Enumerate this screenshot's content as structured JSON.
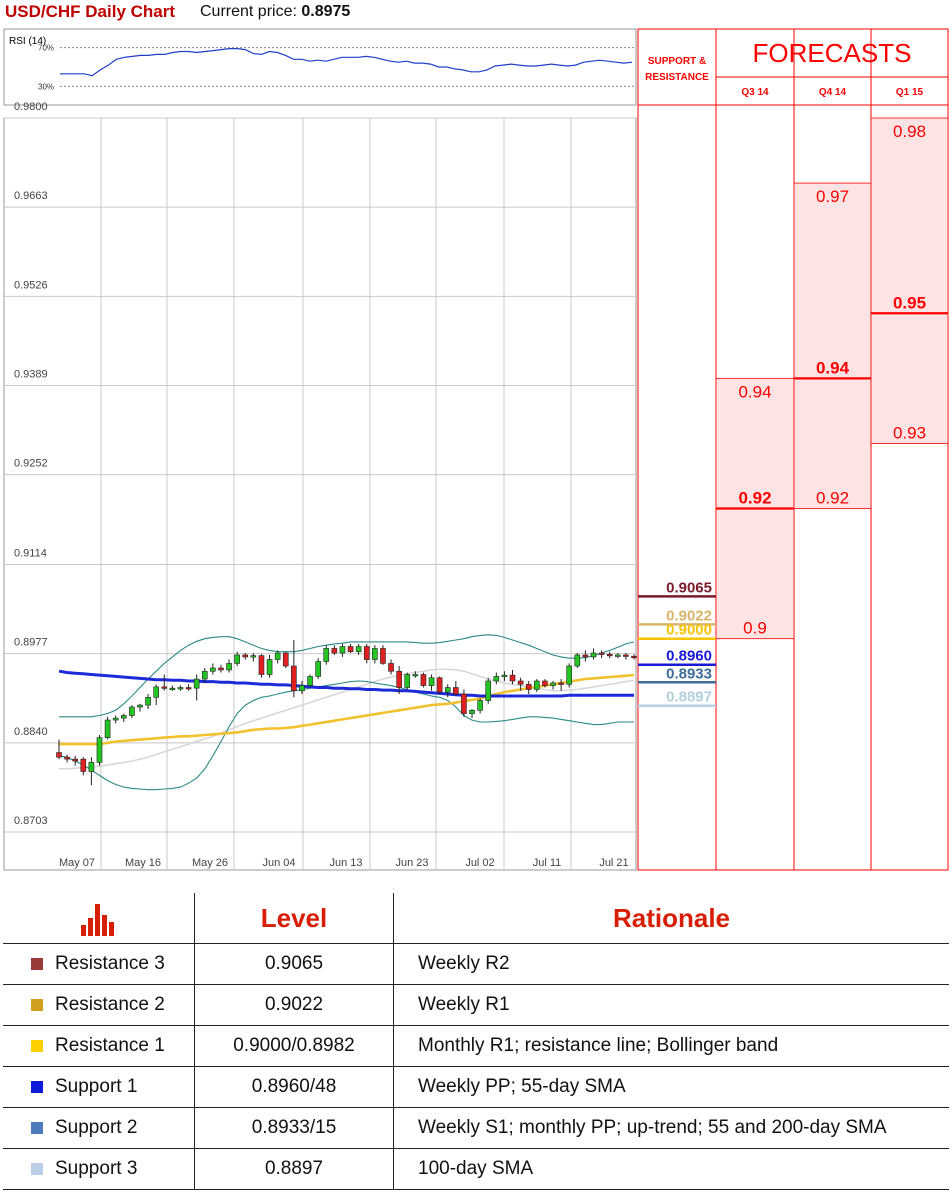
{
  "header": {
    "title": "USD/CHF Daily Chart",
    "price_label": "Current price:",
    "price_value": "0.8975"
  },
  "panel": {
    "sr_title": "SUPPORT & RESISTANCE",
    "forecasts_title": "FORECASTS",
    "quarters": [
      "Q3 14",
      "Q4 14",
      "Q1 15"
    ],
    "forecast_color": "#ff0000",
    "band_fill": "#fde3e3"
  },
  "chart_data": {
    "type": "candlestick",
    "rsi": {
      "label": "RSI (14)",
      "levels": [
        "70%",
        "30%"
      ],
      "values": [
        43,
        43,
        43,
        43,
        41,
        47,
        52,
        58,
        60,
        61,
        62,
        62,
        63,
        63,
        65,
        66,
        66,
        65,
        66,
        67,
        68,
        69,
        69,
        68,
        64,
        63,
        66,
        65,
        62,
        58,
        58,
        56,
        57,
        56,
        58,
        60,
        60,
        60,
        61,
        60,
        58,
        56,
        55,
        56,
        54,
        54,
        53,
        50,
        50,
        48,
        47,
        45,
        45,
        47,
        51,
        52,
        53,
        52,
        51,
        51,
        52,
        53,
        52,
        51,
        52,
        55,
        56,
        57,
        56,
        55,
        54,
        55
      ]
    },
    "y_ticks": [
      "0.9800",
      "0.9663",
      "0.9526",
      "0.9389",
      "0.9252",
      "0.9114",
      "0.8977",
      "0.8840",
      "0.8703"
    ],
    "y_values": [
      0.98,
      0.9663,
      0.9526,
      0.9389,
      0.9252,
      0.9114,
      0.8977,
      0.884,
      0.8703
    ],
    "ylim": [
      0.8703,
      0.98
    ],
    "x_labels": [
      "May 07",
      "May 16",
      "May 26",
      "Jun 04",
      "Jun 13",
      "Jun 23",
      "Jul 02",
      "Jul 11",
      "Jul 21"
    ],
    "candles": [
      {
        "o": 0.8825,
        "h": 0.8845,
        "l": 0.8815,
        "c": 0.8818
      },
      {
        "o": 0.8818,
        "h": 0.8822,
        "l": 0.881,
        "c": 0.8815
      },
      {
        "o": 0.8815,
        "h": 0.882,
        "l": 0.8805,
        "c": 0.8812
      },
      {
        "o": 0.8815,
        "h": 0.8818,
        "l": 0.879,
        "c": 0.8796
      },
      {
        "o": 0.8796,
        "h": 0.8818,
        "l": 0.8775,
        "c": 0.881
      },
      {
        "o": 0.881,
        "h": 0.8852,
        "l": 0.8805,
        "c": 0.8848
      },
      {
        "o": 0.8848,
        "h": 0.888,
        "l": 0.8845,
        "c": 0.8875
      },
      {
        "o": 0.8875,
        "h": 0.8882,
        "l": 0.887,
        "c": 0.8878
      },
      {
        "o": 0.8878,
        "h": 0.8885,
        "l": 0.8872,
        "c": 0.8882
      },
      {
        "o": 0.8882,
        "h": 0.8898,
        "l": 0.8878,
        "c": 0.8895
      },
      {
        "o": 0.8895,
        "h": 0.89,
        "l": 0.8888,
        "c": 0.8898
      },
      {
        "o": 0.8898,
        "h": 0.8915,
        "l": 0.8892,
        "c": 0.891
      },
      {
        "o": 0.891,
        "h": 0.893,
        "l": 0.8898,
        "c": 0.8926
      },
      {
        "o": 0.8926,
        "h": 0.8945,
        "l": 0.892,
        "c": 0.8924
      },
      {
        "o": 0.8924,
        "h": 0.8928,
        "l": 0.892,
        "c": 0.8924
      },
      {
        "o": 0.8924,
        "h": 0.8928,
        "l": 0.892,
        "c": 0.8925
      },
      {
        "o": 0.8925,
        "h": 0.893,
        "l": 0.892,
        "c": 0.8924
      },
      {
        "o": 0.8924,
        "h": 0.8945,
        "l": 0.8905,
        "c": 0.8938
      },
      {
        "o": 0.8938,
        "h": 0.8955,
        "l": 0.8932,
        "c": 0.895
      },
      {
        "o": 0.895,
        "h": 0.8962,
        "l": 0.8945,
        "c": 0.8955
      },
      {
        "o": 0.8955,
        "h": 0.896,
        "l": 0.8948,
        "c": 0.8952
      },
      {
        "o": 0.8952,
        "h": 0.8968,
        "l": 0.8948,
        "c": 0.8962
      },
      {
        "o": 0.8962,
        "h": 0.898,
        "l": 0.8958,
        "c": 0.8975
      },
      {
        "o": 0.8975,
        "h": 0.8978,
        "l": 0.8968,
        "c": 0.8972
      },
      {
        "o": 0.8972,
        "h": 0.8978,
        "l": 0.8965,
        "c": 0.8974
      },
      {
        "o": 0.8974,
        "h": 0.8976,
        "l": 0.894,
        "c": 0.8945
      },
      {
        "o": 0.8945,
        "h": 0.8975,
        "l": 0.894,
        "c": 0.8968
      },
      {
        "o": 0.8968,
        "h": 0.8982,
        "l": 0.8962,
        "c": 0.8978
      },
      {
        "o": 0.8978,
        "h": 0.898,
        "l": 0.8955,
        "c": 0.8958
      },
      {
        "o": 0.8958,
        "h": 0.8998,
        "l": 0.891,
        "c": 0.892
      },
      {
        "o": 0.892,
        "h": 0.8935,
        "l": 0.8915,
        "c": 0.8928
      },
      {
        "o": 0.8928,
        "h": 0.8945,
        "l": 0.8925,
        "c": 0.8942
      },
      {
        "o": 0.8942,
        "h": 0.897,
        "l": 0.8938,
        "c": 0.8965
      },
      {
        "o": 0.8965,
        "h": 0.899,
        "l": 0.896,
        "c": 0.8985
      },
      {
        "o": 0.8985,
        "h": 0.899,
        "l": 0.8975,
        "c": 0.8978
      },
      {
        "o": 0.8978,
        "h": 0.8992,
        "l": 0.8972,
        "c": 0.8988
      },
      {
        "o": 0.8988,
        "h": 0.8992,
        "l": 0.8978,
        "c": 0.898
      },
      {
        "o": 0.898,
        "h": 0.8992,
        "l": 0.8975,
        "c": 0.8988
      },
      {
        "o": 0.8988,
        "h": 0.8992,
        "l": 0.8962,
        "c": 0.8968
      },
      {
        "o": 0.8968,
        "h": 0.899,
        "l": 0.8962,
        "c": 0.8985
      },
      {
        "o": 0.8985,
        "h": 0.899,
        "l": 0.896,
        "c": 0.8962
      },
      {
        "o": 0.8962,
        "h": 0.8968,
        "l": 0.8945,
        "c": 0.895
      },
      {
        "o": 0.895,
        "h": 0.8958,
        "l": 0.8915,
        "c": 0.8925
      },
      {
        "o": 0.8925,
        "h": 0.8948,
        "l": 0.8922,
        "c": 0.8945
      },
      {
        "o": 0.8945,
        "h": 0.895,
        "l": 0.894,
        "c": 0.8945
      },
      {
        "o": 0.8945,
        "h": 0.8948,
        "l": 0.8925,
        "c": 0.8928
      },
      {
        "o": 0.8928,
        "h": 0.8945,
        "l": 0.892,
        "c": 0.894
      },
      {
        "o": 0.894,
        "h": 0.8942,
        "l": 0.8915,
        "c": 0.8918
      },
      {
        "o": 0.8918,
        "h": 0.893,
        "l": 0.891,
        "c": 0.8925
      },
      {
        "o": 0.8925,
        "h": 0.8935,
        "l": 0.8912,
        "c": 0.8915
      },
      {
        "o": 0.8915,
        "h": 0.8922,
        "l": 0.888,
        "c": 0.8885
      },
      {
        "o": 0.8885,
        "h": 0.8892,
        "l": 0.8878,
        "c": 0.889
      },
      {
        "o": 0.889,
        "h": 0.8908,
        "l": 0.8885,
        "c": 0.8905
      },
      {
        "o": 0.8905,
        "h": 0.894,
        "l": 0.89,
        "c": 0.8935
      },
      {
        "o": 0.8935,
        "h": 0.8948,
        "l": 0.893,
        "c": 0.8942
      },
      {
        "o": 0.8942,
        "h": 0.895,
        "l": 0.8935,
        "c": 0.8944
      },
      {
        "o": 0.8944,
        "h": 0.8952,
        "l": 0.893,
        "c": 0.8935
      },
      {
        "o": 0.8935,
        "h": 0.894,
        "l": 0.892,
        "c": 0.893
      },
      {
        "o": 0.893,
        "h": 0.8935,
        "l": 0.8915,
        "c": 0.8922
      },
      {
        "o": 0.8922,
        "h": 0.8938,
        "l": 0.8918,
        "c": 0.8935
      },
      {
        "o": 0.8935,
        "h": 0.8938,
        "l": 0.8925,
        "c": 0.8928
      },
      {
        "o": 0.8928,
        "h": 0.8935,
        "l": 0.8922,
        "c": 0.8932
      },
      {
        "o": 0.8932,
        "h": 0.8938,
        "l": 0.892,
        "c": 0.893
      },
      {
        "o": 0.893,
        "h": 0.8962,
        "l": 0.8925,
        "c": 0.8958
      },
      {
        "o": 0.8958,
        "h": 0.8978,
        "l": 0.8955,
        "c": 0.8975
      },
      {
        "o": 0.8975,
        "h": 0.8982,
        "l": 0.8965,
        "c": 0.8972
      },
      {
        "o": 0.8972,
        "h": 0.8985,
        "l": 0.8968,
        "c": 0.8978
      },
      {
        "o": 0.8978,
        "h": 0.8982,
        "l": 0.897,
        "c": 0.8976
      },
      {
        "o": 0.8976,
        "h": 0.898,
        "l": 0.897,
        "c": 0.8974
      },
      {
        "o": 0.8974,
        "h": 0.8978,
        "l": 0.897,
        "c": 0.8975
      },
      {
        "o": 0.8975,
        "h": 0.8978,
        "l": 0.8968,
        "c": 0.8973
      },
      {
        "o": 0.8973,
        "h": 0.8976,
        "l": 0.8968,
        "c": 0.8972
      }
    ],
    "sma_yellow": [
      0.8838,
      0.8838,
      0.8838,
      0.8838,
      0.8838,
      0.8838,
      0.884,
      0.8842,
      0.8843,
      0.8844,
      0.8845,
      0.8846,
      0.8847,
      0.8848,
      0.8849,
      0.885,
      0.885,
      0.8851,
      0.8852,
      0.8853,
      0.8854,
      0.8855,
      0.8856,
      0.8858,
      0.886,
      0.8861,
      0.8862,
      0.8862,
      0.8863,
      0.8864,
      0.8866,
      0.8868,
      0.887,
      0.8872,
      0.8874,
      0.8876,
      0.8878,
      0.888,
      0.8882,
      0.8884,
      0.8886,
      0.8888,
      0.889,
      0.8892,
      0.8894,
      0.8896,
      0.8898,
      0.8899,
      0.89,
      0.8902,
      0.8904,
      0.8906,
      0.8908,
      0.8912,
      0.8915,
      0.8918,
      0.892,
      0.8922,
      0.8924,
      0.8926,
      0.8928,
      0.893,
      0.8932,
      0.8934,
      0.8936,
      0.8938,
      0.8939,
      0.894,
      0.8941,
      0.8942,
      0.8943,
      0.8944
    ],
    "sma_blue": [
      0.895,
      0.8948,
      0.8947,
      0.8946,
      0.8945,
      0.8944,
      0.8943,
      0.8942,
      0.8941,
      0.894,
      0.8939,
      0.8938,
      0.8937,
      0.8937,
      0.8936,
      0.8936,
      0.8935,
      0.8935,
      0.8934,
      0.8934,
      0.8933,
      0.8933,
      0.8932,
      0.8932,
      0.8931,
      0.893,
      0.893,
      0.8929,
      0.8929,
      0.8928,
      0.8927,
      0.8926,
      0.8925,
      0.8925,
      0.8924,
      0.8924,
      0.8923,
      0.8923,
      0.8922,
      0.8922,
      0.8921,
      0.8921,
      0.892,
      0.892,
      0.8919,
      0.8918,
      0.8917,
      0.8916,
      0.8915,
      0.8914,
      0.8913,
      0.8913,
      0.8912,
      0.8912,
      0.8912,
      0.8912,
      0.8912,
      0.8912,
      0.8912,
      0.8912,
      0.8912,
      0.8912,
      0.8912,
      0.8913,
      0.8913,
      0.8913,
      0.8913,
      0.8913,
      0.8913,
      0.8913,
      0.8913,
      0.8913
    ],
    "boll_upper": [
      0.888,
      0.888,
      0.888,
      0.888,
      0.888,
      0.8882,
      0.8885,
      0.889,
      0.89,
      0.8912,
      0.8925,
      0.8938,
      0.895,
      0.8962,
      0.8972,
      0.8982,
      0.899,
      0.8996,
      0.9,
      0.9002,
      0.9003,
      0.9003,
      0.9,
      0.8995,
      0.899,
      0.8985,
      0.8982,
      0.898,
      0.898,
      0.898,
      0.8982,
      0.8985,
      0.8988,
      0.899,
      0.8992,
      0.8993,
      0.8995,
      0.8995,
      0.8995,
      0.8995,
      0.8995,
      0.8995,
      0.8995,
      0.8995,
      0.8994,
      0.8993,
      0.8993,
      0.8994,
      0.8996,
      0.8998,
      0.9,
      0.9003,
      0.9005,
      0.9006,
      0.9005,
      0.9002,
      0.8998,
      0.8994,
      0.899,
      0.8985,
      0.898,
      0.8975,
      0.8972,
      0.897,
      0.897,
      0.8971,
      0.8974,
      0.8978,
      0.8982,
      0.8987,
      0.8992,
      0.8995
    ],
    "boll_lower": [
      0.882,
      0.8818,
      0.8812,
      0.8806,
      0.8798,
      0.879,
      0.8782,
      0.8776,
      0.8772,
      0.877,
      0.8769,
      0.8768,
      0.8768,
      0.8769,
      0.877,
      0.8772,
      0.8778,
      0.8786,
      0.88,
      0.882,
      0.8842,
      0.8865,
      0.8885,
      0.8898,
      0.8905,
      0.891,
      0.8912,
      0.8915,
      0.8918,
      0.892,
      0.8922,
      0.8924,
      0.8926,
      0.8928,
      0.893,
      0.8932,
      0.8934,
      0.8935,
      0.8934,
      0.8932,
      0.893,
      0.8928,
      0.8925,
      0.8922,
      0.8918,
      0.8915,
      0.8912,
      0.891,
      0.8905,
      0.8895,
      0.8882,
      0.8875,
      0.8872,
      0.8872,
      0.8873,
      0.8874,
      0.8876,
      0.8878,
      0.888,
      0.888,
      0.8879,
      0.8878,
      0.8876,
      0.8874,
      0.8872,
      0.887,
      0.8868,
      0.8868,
      0.887,
      0.8872,
      0.8872,
      0.8872
    ],
    "sma_gray": [
      0.88,
      0.88,
      0.8801,
      0.8802,
      0.8803,
      0.8804,
      0.8806,
      0.8808,
      0.881,
      0.8812,
      0.8815,
      0.8818,
      0.8822,
      0.8826,
      0.883,
      0.8834,
      0.8838,
      0.8842,
      0.8846,
      0.885,
      0.8855,
      0.886,
      0.8865,
      0.887,
      0.8874,
      0.8878,
      0.8882,
      0.8886,
      0.889,
      0.8894,
      0.8898,
      0.8902,
      0.8906,
      0.891,
      0.8914,
      0.8918,
      0.8922,
      0.8926,
      0.893,
      0.8934,
      0.8938,
      0.8941,
      0.8944,
      0.8946,
      0.8948,
      0.895,
      0.8952,
      0.8953,
      0.8953,
      0.8952,
      0.895,
      0.8946,
      0.8942,
      0.8938,
      0.8935,
      0.8932,
      0.893,
      0.8928,
      0.8926,
      0.8924,
      0.8922,
      0.892,
      0.892,
      0.8921,
      0.8922,
      0.8924,
      0.8926,
      0.8928,
      0.893,
      0.8932,
      0.8934,
      0.8936
    ],
    "sr_levels": [
      {
        "value": 0.9065,
        "label": "0.9065",
        "color": "#7b1a2b"
      },
      {
        "value": 0.9022,
        "label": "0.9022",
        "color": "#d9b56a"
      },
      {
        "value": 0.9,
        "label": "0.9000",
        "color": "#f5c400"
      },
      {
        "value": 0.896,
        "label": "0.8960",
        "color": "#1a1ad6"
      },
      {
        "value": 0.8933,
        "label": "0.8933",
        "color": "#3b6e9a"
      },
      {
        "value": 0.8897,
        "label": "0.8897",
        "color": "#b3cfe0"
      }
    ],
    "forecasts": [
      {
        "quarter": "Q3 14",
        "high": 0.94,
        "median": 0.92,
        "low": 0.9,
        "labels": [
          "0.94",
          "0.92",
          "0.9"
        ]
      },
      {
        "quarter": "Q4 14",
        "high": 0.97,
        "median": 0.94,
        "low": 0.92,
        "labels": [
          "0.97",
          "0.94",
          "0.92"
        ]
      },
      {
        "quarter": "Q1 15",
        "high": 0.98,
        "median": 0.95,
        "low": 0.93,
        "labels": [
          "0.98",
          "0.95",
          "0.93"
        ]
      }
    ]
  },
  "table": {
    "header_level": "Level",
    "header_rationale": "Rationale",
    "rows": [
      {
        "name": "Resistance 3",
        "level": "0.9065",
        "rationale": "Weekly R2",
        "color": "#963a3a"
      },
      {
        "name": "Resistance 2",
        "level": "0.9022",
        "rationale": "Weekly R1",
        "color": "#d1a020"
      },
      {
        "name": "Resistance 1",
        "level": "0.9000/0.8982",
        "rationale": "Monthly R1; resistance line; Bollinger band",
        "color": "#ffd000"
      },
      {
        "name": "Support 1",
        "level": "0.8960/48",
        "rationale": "Weekly PP; 55-day SMA",
        "color": "#0a1ad8"
      },
      {
        "name": "Support 2",
        "level": "0.8933/15",
        "rationale": "Weekly S1; monthly PP; up-trend; 55 and 200-day SMA",
        "color": "#4c7cbc"
      },
      {
        "name": "Support 3",
        "level": "0.8897",
        "rationale": "100-day SMA",
        "color": "#bccde6"
      }
    ]
  }
}
